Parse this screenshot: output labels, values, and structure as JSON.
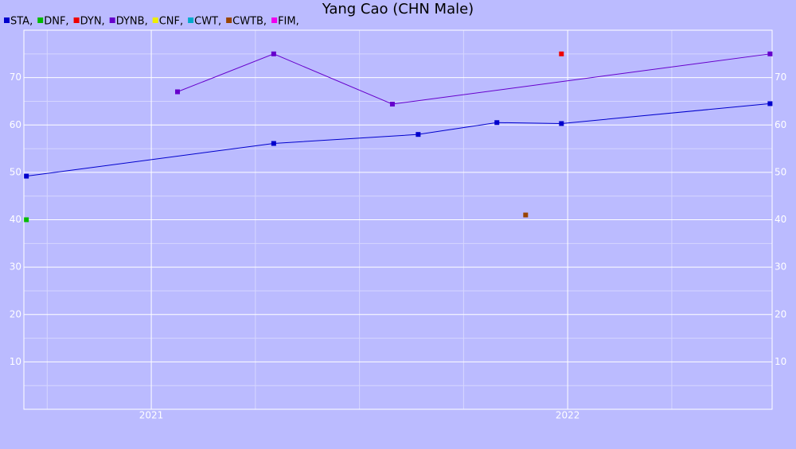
{
  "chart_data": {
    "type": "scatter",
    "title": "Yang Cao (CHN Male)",
    "xlim": [
      2020.694,
      2022.491
    ],
    "xticks": [
      2021,
      2022
    ],
    "xminorticks": [
      2020.75,
      2021.25,
      2021.5,
      2021.75,
      2022.25
    ],
    "ylim": [
      0,
      80
    ],
    "yticks": [
      10,
      20,
      30,
      40,
      50,
      60,
      70
    ],
    "yminorticks": [
      5,
      15,
      25,
      35,
      45,
      55,
      65,
      75
    ],
    "grid": true,
    "legend": "top-left",
    "series": [
      {
        "name": "STA,",
        "color": "#0000cc",
        "line": true,
        "x": [
          2020.7,
          2021.294,
          2021.641,
          2021.83,
          2021.985,
          2022.486
        ],
        "values": [
          49.2,
          56.1,
          58.0,
          60.5,
          60.3,
          64.5
        ]
      },
      {
        "name": "DNF,",
        "color": "#00bb00",
        "line": true,
        "x": [
          2020.7
        ],
        "values": [
          40
        ]
      },
      {
        "name": "DYN,",
        "color": "#ee0000",
        "line": true,
        "x": [
          2021.985
        ],
        "values": [
          75
        ]
      },
      {
        "name": "DYNB,",
        "color": "#6600cc",
        "line": true,
        "x": [
          2021.063,
          2021.294,
          2021.579,
          2022.486
        ],
        "values": [
          67,
          75,
          64.4,
          75
        ]
      },
      {
        "name": "CNF,",
        "color": "#eeee00",
        "line": true,
        "x": [],
        "values": []
      },
      {
        "name": "CWT,",
        "color": "#00aacc",
        "line": true,
        "x": [],
        "values": []
      },
      {
        "name": "CWTB,",
        "color": "#994400",
        "line": true,
        "x": [
          2021.899
        ],
        "values": [
          41
        ]
      },
      {
        "name": "FIM,",
        "color": "#ee00ee",
        "line": true,
        "x": [],
        "values": []
      }
    ]
  }
}
